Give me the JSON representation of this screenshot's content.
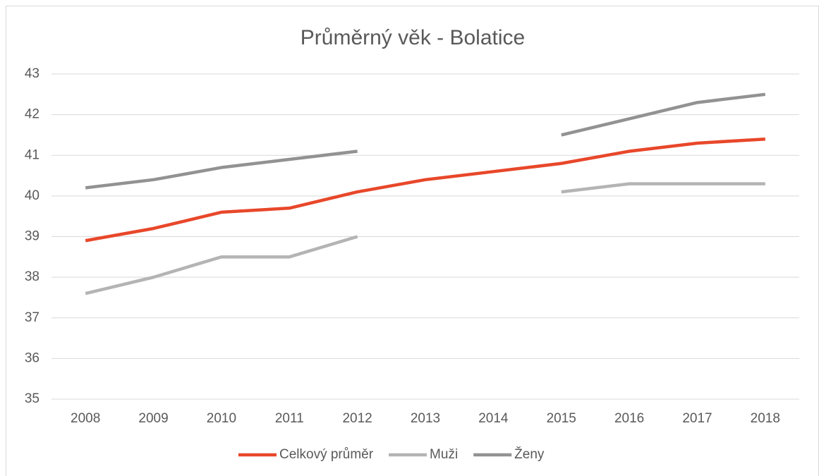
{
  "chart_data": {
    "type": "line",
    "title": "Průměrný věk - Bolatice",
    "categories": [
      "2008",
      "2009",
      "2010",
      "2011",
      "2012",
      "2013",
      "2014",
      "2015",
      "2016",
      "2017",
      "2018"
    ],
    "series": [
      {
        "name": "Celkový průměr",
        "color": "#e8472a",
        "values": [
          38.9,
          39.2,
          39.6,
          39.7,
          40.1,
          40.4,
          40.6,
          40.8,
          41.1,
          41.3,
          41.4
        ]
      },
      {
        "name": "Muži",
        "color": "#b4b4b4",
        "values": [
          37.6,
          38.0,
          38.5,
          38.5,
          39.0,
          null,
          null,
          40.1,
          40.3,
          40.3,
          40.3
        ]
      },
      {
        "name": "Ženy",
        "color": "#929292",
        "values": [
          40.2,
          40.4,
          40.7,
          40.9,
          41.1,
          null,
          null,
          41.5,
          41.9,
          42.3,
          42.5
        ]
      }
    ],
    "ylim": [
      35,
      43
    ],
    "yticks": [
      35,
      36,
      37,
      38,
      39,
      40,
      41,
      42,
      43
    ],
    "grid": true,
    "legend": "bottom"
  }
}
